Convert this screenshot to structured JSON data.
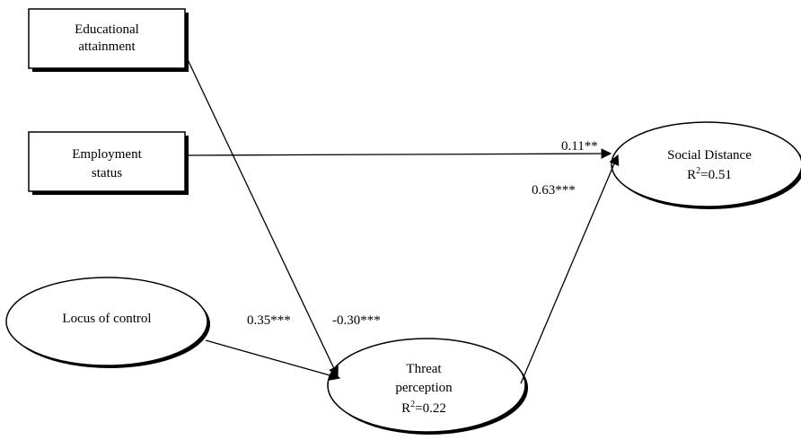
{
  "nodes": {
    "educational_attainment": {
      "line1": "Educational",
      "line2": "attainment"
    },
    "employment_status": {
      "line1": "Employment",
      "line2": "status"
    },
    "locus_of_control": {
      "label": "Locus of control"
    },
    "threat_perception": {
      "line1": "Threat",
      "line2": "perception",
      "r2_prefix": "R",
      "r2_exp": "2",
      "r2_value": "=0.22"
    },
    "social_distance": {
      "line1": "Social Distance",
      "r2_prefix": "R",
      "r2_exp": "2",
      "r2_value": "=0.51"
    }
  },
  "paths": {
    "employment_to_social": "0.11**",
    "threat_to_social": "0.63***",
    "locus_to_threat": "0.35***",
    "education_to_threat": "-0.30***"
  }
}
